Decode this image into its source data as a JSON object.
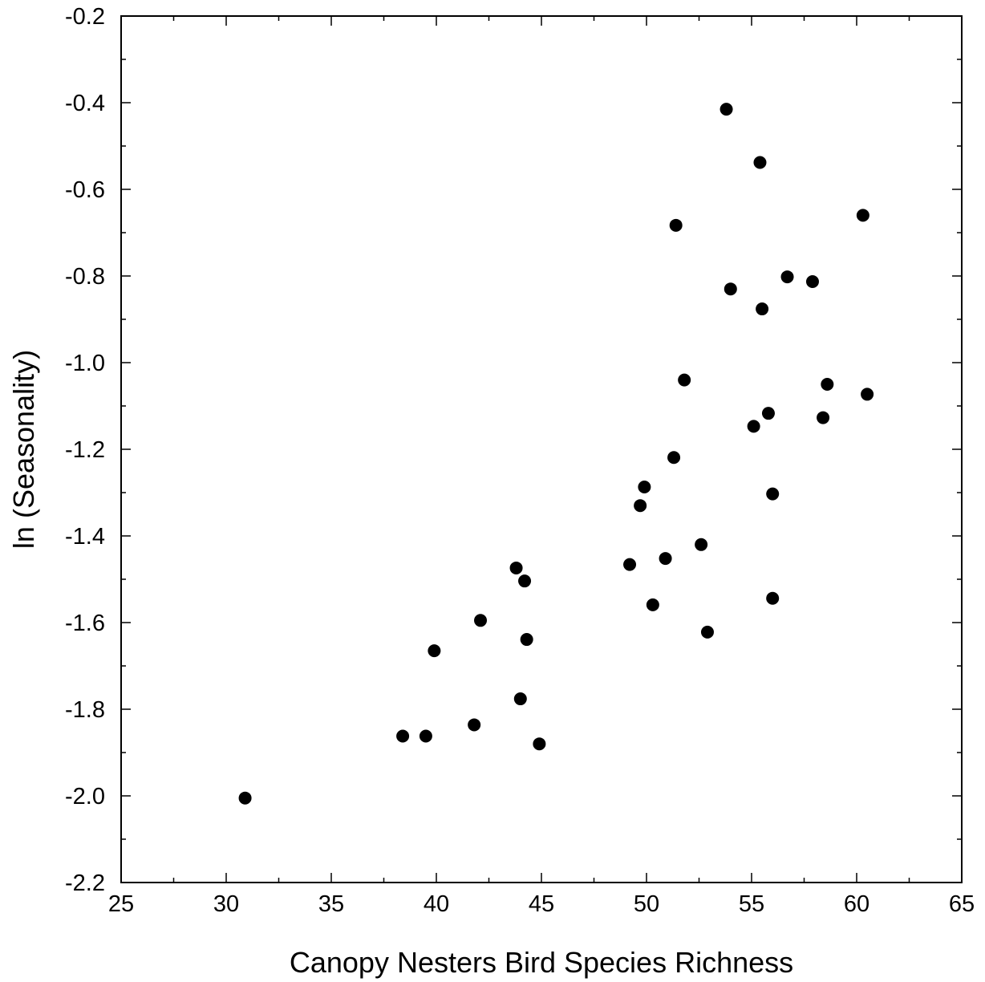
{
  "chart_data": {
    "type": "scatter",
    "title": "",
    "xlabel": "Canopy Nesters Bird Species Richness",
    "ylabel": "ln (Seasonality)",
    "xlim": [
      25,
      65
    ],
    "ylim": [
      -2.2,
      -0.2
    ],
    "x_ticks": [
      25,
      30,
      35,
      40,
      45,
      50,
      55,
      60,
      65
    ],
    "x_tick_labels": [
      "25",
      "30",
      "35",
      "40",
      "45",
      "50",
      "55",
      "60",
      "65"
    ],
    "y_ticks": [
      -0.2,
      -0.4,
      -0.6,
      -0.8,
      -1.0,
      -1.2,
      -1.4,
      -1.6,
      -1.8,
      -2.0,
      -2.2
    ],
    "y_tick_labels": [
      "-0.2",
      "-0.4",
      "-0.6",
      "-0.8",
      "-1.0",
      "-1.2",
      "-1.4",
      "-1.6",
      "-1.8",
      "-2.0",
      "-2.2"
    ],
    "grid": false,
    "legend": "none",
    "marker_color": "#000000",
    "series": [
      {
        "points": [
          [
            30.9,
            -2.005
          ],
          [
            38.4,
            -1.862
          ],
          [
            39.5,
            -1.862
          ],
          [
            39.9,
            -1.665
          ],
          [
            41.8,
            -1.836
          ],
          [
            42.1,
            -1.595
          ],
          [
            43.8,
            -1.474
          ],
          [
            44.0,
            -1.776
          ],
          [
            44.2,
            -1.504
          ],
          [
            44.3,
            -1.639
          ],
          [
            44.9,
            -1.88
          ],
          [
            49.2,
            -1.466
          ],
          [
            49.7,
            -1.33
          ],
          [
            49.9,
            -1.287
          ],
          [
            50.3,
            -1.559
          ],
          [
            50.9,
            -1.452
          ],
          [
            51.3,
            -1.219
          ],
          [
            51.4,
            -0.683
          ],
          [
            51.8,
            -1.04
          ],
          [
            52.6,
            -1.42
          ],
          [
            52.9,
            -1.622
          ],
          [
            53.8,
            -0.415
          ],
          [
            54.0,
            -0.83
          ],
          [
            55.1,
            -1.147
          ],
          [
            55.4,
            -0.538
          ],
          [
            55.5,
            -0.876
          ],
          [
            55.8,
            -1.117
          ],
          [
            56.0,
            -1.544
          ],
          [
            56.0,
            -1.303
          ],
          [
            56.7,
            -0.802
          ],
          [
            57.9,
            -0.813
          ],
          [
            58.4,
            -1.127
          ],
          [
            58.6,
            -1.05
          ],
          [
            60.3,
            -0.66
          ],
          [
            60.5,
            -1.073
          ]
        ]
      }
    ]
  }
}
